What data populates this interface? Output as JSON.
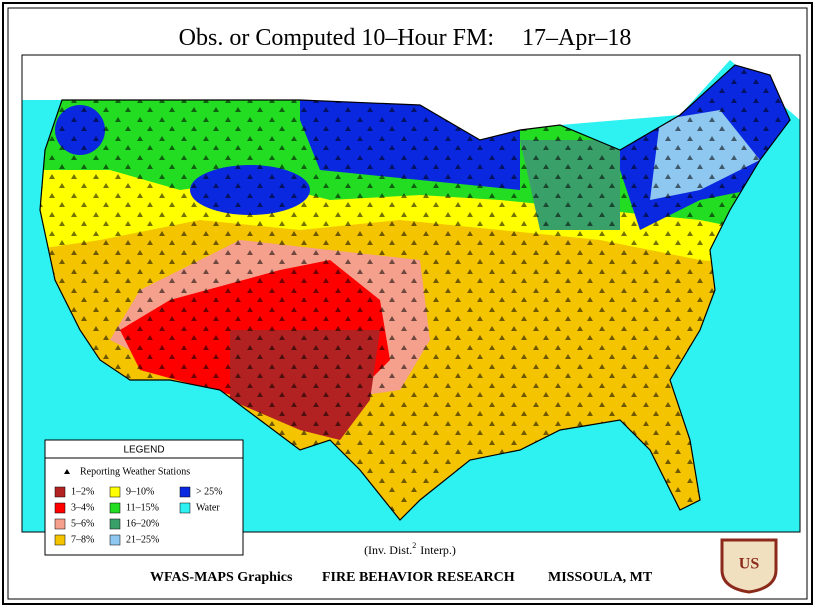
{
  "header": {
    "title": "Obs. or Computed 10–Hour FM:",
    "date": "17–Apr–18"
  },
  "legend": {
    "title": "LEGEND",
    "stations": "Reporting Weather Stations",
    "items": [
      {
        "label": "1–2%",
        "color": "#b22222"
      },
      {
        "label": "3–4%",
        "color": "#ff0000"
      },
      {
        "label": "5–6%",
        "color": "#f4a08c"
      },
      {
        "label": "7–8%",
        "color": "#f5c400"
      },
      {
        "label": "9–10%",
        "color": "#ffff00"
      },
      {
        "label": "11–15%",
        "color": "#22dd22"
      },
      {
        "label": "16–20%",
        "color": "#3aa06a"
      },
      {
        "label": "21–25%",
        "color": "#8ec8f0"
      },
      {
        "label": "> 25%",
        "color": "#0a28e0"
      },
      {
        "label": "Water",
        "color": "#2ef2f2"
      }
    ]
  },
  "note": {
    "text": "(Inv. Dist.",
    "superscript": "2",
    "text2": "Interp.)"
  },
  "footer": {
    "left": "WFAS-MAPS Graphics",
    "center": "FIRE BEHAVIOR RESEARCH",
    "right": "MISSOULA, MT"
  },
  "logo": {
    "text": "US"
  }
}
